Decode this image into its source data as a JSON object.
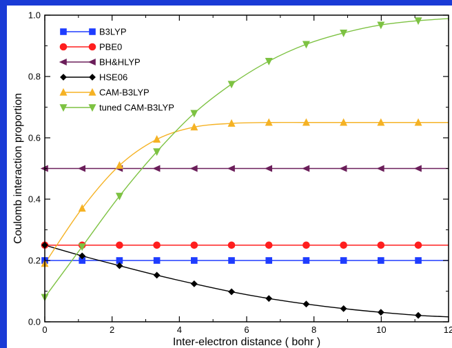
{
  "chart_data": {
    "type": "line",
    "title": "",
    "xlabel": "Inter-electron distance  ( bohr )",
    "ylabel": "Coulomb interaction proportion",
    "xlim": [
      0,
      12
    ],
    "ylim": [
      0,
      1.0
    ],
    "xticks": [
      0,
      2,
      4,
      6,
      8,
      10,
      12
    ],
    "yticks": [
      0.0,
      0.2,
      0.4,
      0.6,
      0.8,
      1.0
    ],
    "xtick_labels": [
      "0",
      "2",
      "4",
      "6",
      "8",
      "10",
      "12"
    ],
    "ytick_labels": [
      "0.0",
      "0.2",
      "0.4",
      "0.6",
      "0.8",
      "1.0"
    ],
    "legend_position": "top-left",
    "grid": false,
    "series": [
      {
        "name": "B3LYP",
        "color": "#1e3cff",
        "marker": "square",
        "x": [
          0,
          1.11,
          2.22,
          3.33,
          4.44,
          5.55,
          6.66,
          7.77,
          8.88,
          9.99,
          11.1
        ],
        "y": [
          0.2,
          0.2,
          0.2,
          0.2,
          0.2,
          0.2,
          0.2,
          0.2,
          0.2,
          0.2,
          0.2
        ]
      },
      {
        "name": "PBE0",
        "color": "#ff1e1e",
        "marker": "circle",
        "x": [
          0,
          1.11,
          2.22,
          3.33,
          4.44,
          5.55,
          6.66,
          7.77,
          8.88,
          9.99,
          11.1
        ],
        "y": [
          0.25,
          0.25,
          0.25,
          0.25,
          0.25,
          0.25,
          0.25,
          0.25,
          0.25,
          0.25,
          0.25
        ]
      },
      {
        "name": "BH&HLYP",
        "color": "#6b1e5a",
        "marker": "triangle-left",
        "x": [
          0,
          1.11,
          2.22,
          3.33,
          4.44,
          5.55,
          6.66,
          7.77,
          8.88,
          9.99,
          11.1
        ],
        "y": [
          0.5,
          0.5,
          0.5,
          0.5,
          0.5,
          0.5,
          0.5,
          0.5,
          0.5,
          0.5,
          0.5
        ]
      },
      {
        "name": "HSE06",
        "color": "#000000",
        "marker": "diamond",
        "x": [
          0,
          1.11,
          2.22,
          3.33,
          4.44,
          5.55,
          6.66,
          7.77,
          8.88,
          9.99,
          11.1
        ],
        "y": [
          0.25,
          0.215,
          0.183,
          0.152,
          0.124,
          0.098,
          0.076,
          0.058,
          0.043,
          0.031,
          0.021
        ]
      },
      {
        "name": "CAM-B3LYP",
        "color": "#f5b224",
        "marker": "triangle-up",
        "x": [
          0,
          1.11,
          2.22,
          3.33,
          4.44,
          5.55,
          6.66,
          7.77,
          8.88,
          9.99,
          11.1
        ],
        "y": [
          0.19,
          0.37,
          0.51,
          0.595,
          0.635,
          0.647,
          0.65,
          0.65,
          0.65,
          0.65,
          0.65
        ]
      },
      {
        "name": "tuned CAM-B3LYP",
        "color": "#7dc242",
        "marker": "triangle-down",
        "x": [
          0,
          1.11,
          2.22,
          3.33,
          4.44,
          5.55,
          6.66,
          7.77,
          8.88,
          9.99,
          11.1
        ],
        "y": [
          0.08,
          0.245,
          0.41,
          0.555,
          0.68,
          0.775,
          0.85,
          0.905,
          0.942,
          0.968,
          0.982
        ]
      }
    ]
  }
}
